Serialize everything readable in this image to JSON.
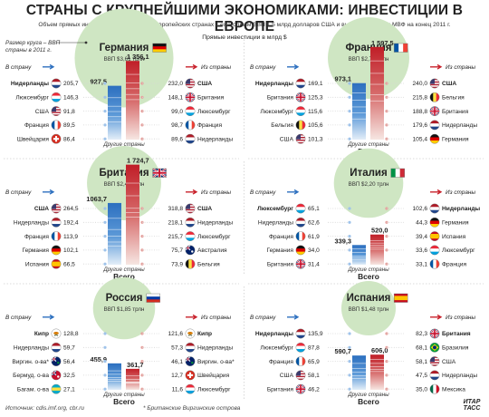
{
  "title": "СТРАНЫ С КРУПНЕЙШИМИ ЭКОНОМИКАМИ: ИНВЕСТИЦИИ В ЕВРОПЕ",
  "subtitle": "Объем прямых инвестиций в крупнейших европейских странах с ежегодным ВВП 1,5 млрд долларов США и выше, по данным МВФ на конец 2011 г.",
  "size_note": "Размер круга – ВВП страны в 2011 г.",
  "fdi_note": "Прямые инвестиции в млрд $",
  "labels": {
    "in_country": "В страну",
    "from_country": "Из страны",
    "total": "Всего",
    "other": "Другие страны"
  },
  "footer": {
    "source": "Источник: cdis.imf.org, cbr.ru",
    "note": "* Британские Виргинские острова",
    "logo": "ИТАР ТАСС"
  },
  "colors": {
    "inflow": "#3a7dc9",
    "outflow": "#c8202a",
    "gdp_circle": "#cfe6c3",
    "dot": "#d6d6d6"
  },
  "chart_data": [
    {
      "type": "bar",
      "country": "Германия",
      "flag": "germany-flag",
      "gdp": "ВВП $3,61 трлн",
      "gdp_trln": 3.61,
      "inflow_total": 927.5,
      "outflow_total": 1356.1,
      "inflow_label": "927,5",
      "outflow_label": "1 356,1",
      "inflow": [
        {
          "name": "Нидерланды",
          "value": 205.7,
          "label": "205,7",
          "flag": "netherlands-flag"
        },
        {
          "name": "Люксембург",
          "value": 146.3,
          "label": "146,3",
          "flag": "luxembourg-flag"
        },
        {
          "name": "США",
          "value": 91.8,
          "label": "91,8",
          "flag": "usa-flag"
        },
        {
          "name": "Франция",
          "value": 89.5,
          "label": "89,5",
          "flag": "france-flag"
        },
        {
          "name": "Швейцария",
          "value": 86.4,
          "label": "86,4",
          "flag": "switzerland-flag"
        }
      ],
      "outflow": [
        {
          "name": "США",
          "value": 232.0,
          "label": "232,0",
          "flag": "usa-flag"
        },
        {
          "name": "Британия",
          "value": 148.1,
          "label": "148,1",
          "flag": "uk-flag"
        },
        {
          "name": "Люксембург",
          "value": 99.0,
          "label": "99,0",
          "flag": "luxembourg-flag"
        },
        {
          "name": "Франция",
          "value": 98.7,
          "label": "98,7",
          "flag": "france-flag"
        },
        {
          "name": "Нидерланды",
          "value": 89.6,
          "label": "89,6",
          "flag": "netherlands-flag"
        }
      ]
    },
    {
      "type": "bar",
      "country": "Франция",
      "flag": "france-flag",
      "gdp": "ВВП $2,78 трлн",
      "gdp_trln": 2.78,
      "inflow_total": 973.1,
      "outflow_total": 1597.5,
      "inflow_label": "973,1",
      "outflow_label": "1 597,5",
      "inflow": [
        {
          "name": "Нидерланды",
          "value": 169.1,
          "label": "169,1",
          "flag": "netherlands-flag"
        },
        {
          "name": "Британия",
          "value": 125.3,
          "label": "125,3",
          "flag": "uk-flag"
        },
        {
          "name": "Люксембург",
          "value": 115.6,
          "label": "115,6",
          "flag": "luxembourg-flag"
        },
        {
          "name": "Бельгия",
          "value": 105.6,
          "label": "105,6",
          "flag": "belgium-flag"
        },
        {
          "name": "США",
          "value": 101.3,
          "label": "101,3",
          "flag": "usa-flag"
        }
      ],
      "outflow": [
        {
          "name": "США",
          "value": 240.0,
          "label": "240,0",
          "flag": "usa-flag"
        },
        {
          "name": "Бельгия",
          "value": 215.8,
          "label": "215,8",
          "flag": "belgium-flag"
        },
        {
          "name": "Британия",
          "value": 188.8,
          "label": "188,8",
          "flag": "uk-flag"
        },
        {
          "name": "Нидерланды",
          "value": 179.6,
          "label": "179,6",
          "flag": "netherlands-flag"
        },
        {
          "name": "Германия",
          "value": 105.4,
          "label": "105,4",
          "flag": "germany-flag"
        }
      ]
    },
    {
      "type": "bar",
      "country": "Британия",
      "flag": "uk-flag",
      "gdp": "ВВП $2,43 трлн",
      "gdp_trln": 2.43,
      "inflow_total": 1063.7,
      "outflow_total": 1724.7,
      "inflow_label": "1063,7",
      "outflow_label": "1 724,7",
      "inflow": [
        {
          "name": "США",
          "value": 264.5,
          "label": "264,5",
          "flag": "usa-flag"
        },
        {
          "name": "Нидерланды",
          "value": 192.4,
          "label": "192,4",
          "flag": "netherlands-flag"
        },
        {
          "name": "Франция",
          "value": 113.9,
          "label": "113,9",
          "flag": "france-flag"
        },
        {
          "name": "Германия",
          "value": 102.1,
          "label": "102,1",
          "flag": "germany-flag"
        },
        {
          "name": "Испания",
          "value": 66.5,
          "label": "66,5",
          "flag": "spain-flag"
        }
      ],
      "outflow": [
        {
          "name": "США",
          "value": 318.8,
          "label": "318,8",
          "flag": "usa-flag"
        },
        {
          "name": "Нидерланды",
          "value": 218.1,
          "label": "218,1",
          "flag": "netherlands-flag"
        },
        {
          "name": "Люксембург",
          "value": 215.7,
          "label": "215,7",
          "flag": "luxembourg-flag"
        },
        {
          "name": "Австралия",
          "value": 75.7,
          "label": "75,7",
          "flag": "australia-flag"
        },
        {
          "name": "Бельгия",
          "value": 73.9,
          "label": "73,9",
          "flag": "belgium-flag"
        }
      ]
    },
    {
      "type": "bar",
      "country": "Италия",
      "flag": "italy-flag",
      "gdp": "ВВП $2,20 трлн",
      "gdp_trln": 2.2,
      "inflow_total": 339.3,
      "outflow_total": 520.0,
      "inflow_label": "339,3",
      "outflow_label": "520,0",
      "inflow": [
        {
          "name": "Люксембург",
          "value": 65.1,
          "label": "65,1",
          "flag": "luxembourg-flag"
        },
        {
          "name": "Нидерланды",
          "value": 62.6,
          "label": "62,6",
          "flag": "netherlands-flag"
        },
        {
          "name": "Франция",
          "value": 61.9,
          "label": "61,9",
          "flag": "france-flag"
        },
        {
          "name": "Германия",
          "value": 34.0,
          "label": "34,0",
          "flag": "germany-flag"
        },
        {
          "name": "Британия",
          "value": 31.4,
          "label": "31,4",
          "flag": "uk-flag"
        }
      ],
      "outflow": [
        {
          "name": "Нидерланды",
          "value": 102.6,
          "label": "102,6",
          "flag": "netherlands-flag"
        },
        {
          "name": "Германия",
          "value": 44.3,
          "label": "44,3",
          "flag": "germany-flag"
        },
        {
          "name": "Испания",
          "value": 39.4,
          "label": "39,4",
          "flag": "spain-flag"
        },
        {
          "name": "Люксембург",
          "value": 33.6,
          "label": "33,6",
          "flag": "luxembourg-flag"
        },
        {
          "name": "Франция",
          "value": 33.1,
          "label": "33,1",
          "flag": "france-flag"
        }
      ]
    },
    {
      "type": "bar",
      "country": "Россия",
      "flag": "russia-flag",
      "gdp": "ВВП $1,85 трлн",
      "gdp_trln": 1.85,
      "inflow_total": 455.9,
      "outflow_total": 361.7,
      "inflow_label": "455,9",
      "outflow_label": "361,7",
      "inflow": [
        {
          "name": "Кипр",
          "value": 128.8,
          "label": "128,8",
          "flag": "cyprus-flag"
        },
        {
          "name": "Нидерланды",
          "value": 59.7,
          "label": "59,7",
          "flag": "netherlands-flag"
        },
        {
          "name": "Виргин. о-ва*",
          "value": 56.4,
          "label": "56,4",
          "flag": "bvi-flag"
        },
        {
          "name": "Бермуд. о-ва",
          "value": 32.5,
          "label": "32,5",
          "flag": "bermuda-flag"
        },
        {
          "name": "Багам. о-ва",
          "value": 27.1,
          "label": "27,1",
          "flag": "bahamas-flag"
        }
      ],
      "outflow": [
        {
          "name": "Кипр",
          "value": 121.6,
          "label": "121,6",
          "flag": "cyprus-flag"
        },
        {
          "name": "Нидерланды",
          "value": 57.3,
          "label": "57,3",
          "flag": "netherlands-flag"
        },
        {
          "name": "Виргин. о-ва*",
          "value": 46.1,
          "label": "46,1",
          "flag": "bvi-flag"
        },
        {
          "name": "Швейцария",
          "value": 12.7,
          "label": "12,7",
          "flag": "switzerland-flag"
        },
        {
          "name": "Люксембург",
          "value": 11.6,
          "label": "11,6",
          "flag": "luxembourg-flag"
        }
      ]
    },
    {
      "type": "bar",
      "country": "Испания",
      "flag": "spain-flag",
      "gdp": "ВВП $1,48 трлн",
      "gdp_trln": 1.48,
      "inflow_total": 590.7,
      "outflow_total": 606.0,
      "inflow_label": "590,7",
      "outflow_label": "606,0",
      "inflow": [
        {
          "name": "Нидерланды",
          "value": 135.9,
          "label": "135,9",
          "flag": "netherlands-flag"
        },
        {
          "name": "Люксембург",
          "value": 87.8,
          "label": "87,8",
          "flag": "luxembourg-flag"
        },
        {
          "name": "Франция",
          "value": 65.9,
          "label": "65,9",
          "flag": "france-flag"
        },
        {
          "name": "США",
          "value": 58.1,
          "label": "58,1",
          "flag": "usa-flag"
        },
        {
          "name": "Британия",
          "value": 46.2,
          "label": "46,2",
          "flag": "uk-flag"
        }
      ],
      "outflow": [
        {
          "name": "Британия",
          "value": 82.3,
          "label": "82,3",
          "flag": "uk-flag"
        },
        {
          "name": "Бразилия",
          "value": 68.1,
          "label": "68,1",
          "flag": "brazil-flag"
        },
        {
          "name": "США",
          "value": 58.1,
          "label": "58,1",
          "flag": "usa-flag"
        },
        {
          "name": "Нидерланды",
          "value": 47.5,
          "label": "47,5",
          "flag": "netherlands-flag"
        },
        {
          "name": "Мексика",
          "value": 35.0,
          "label": "35,0",
          "flag": "mexico-flag"
        }
      ]
    }
  ]
}
